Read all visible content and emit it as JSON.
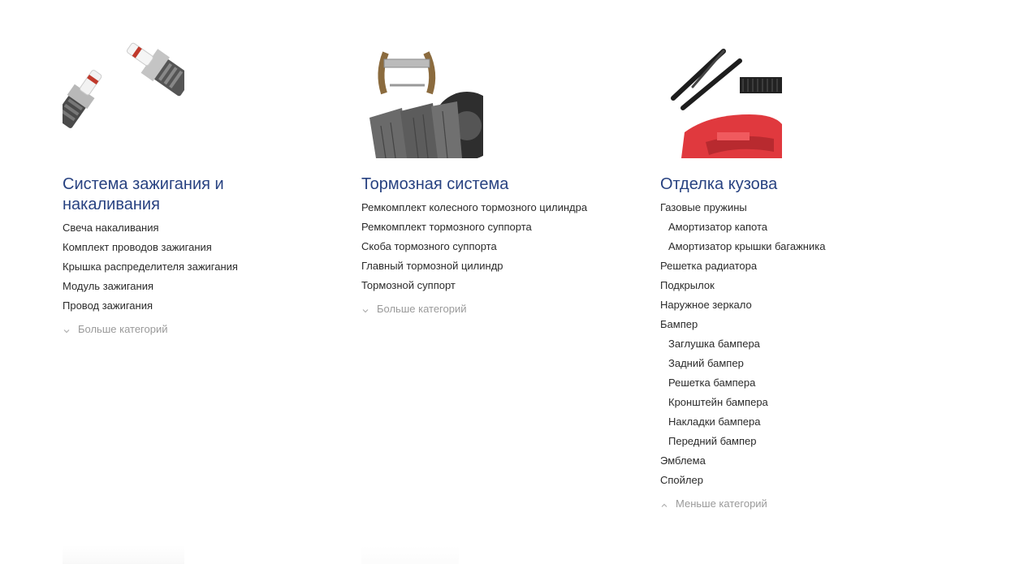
{
  "categories": [
    {
      "title": "Система зажигания и накаливания",
      "image_icon": "spark-plug-image",
      "items": [
        {
          "label": "Свеча накаливания",
          "level": 0
        },
        {
          "label": "Комплект проводов зажигания",
          "level": 0
        },
        {
          "label": "Крышка распределителя зажигания",
          "level": 0
        },
        {
          "label": "Модуль зажигания",
          "level": 0
        },
        {
          "label": "Провод зажигания",
          "level": 0
        }
      ],
      "toggle_label": "Больше категорий",
      "toggle_icon": "chevron-down-icon"
    },
    {
      "title": "Тормозная система",
      "image_icon": "brake-parts-image",
      "items": [
        {
          "label": "Ремкомплект колесного тормозного цилиндра",
          "level": 0
        },
        {
          "label": "Ремкомплект тормозного суппорта",
          "level": 0
        },
        {
          "label": "Скоба тормозного суппорта",
          "level": 0
        },
        {
          "label": "Главный тормозной цилиндр",
          "level": 0
        },
        {
          "label": "Тормозной суппорт",
          "level": 0
        }
      ],
      "toggle_label": "Больше категорий",
      "toggle_icon": "chevron-down-icon"
    },
    {
      "title": "Отделка кузова",
      "image_icon": "body-parts-image",
      "items": [
        {
          "label": "Газовые пружины",
          "level": 0
        },
        {
          "label": "Амортизатор капота",
          "level": 1
        },
        {
          "label": "Амортизатор крышки багажника",
          "level": 1
        },
        {
          "label": "Решетка радиатора",
          "level": 0
        },
        {
          "label": "Подкрылок",
          "level": 0
        },
        {
          "label": "Наружное зеркало",
          "level": 0
        },
        {
          "label": "Бампер",
          "level": 0
        },
        {
          "label": "Заглушка бампера",
          "level": 1
        },
        {
          "label": "Задний бампер",
          "level": 1
        },
        {
          "label": "Решетка бампера",
          "level": 1
        },
        {
          "label": "Кронштейн бампера",
          "level": 1
        },
        {
          "label": "Накладки бампера",
          "level": 1
        },
        {
          "label": "Передний бампер",
          "level": 1
        },
        {
          "label": "Эмблема",
          "level": 0
        },
        {
          "label": "Спойлер",
          "level": 0
        }
      ],
      "toggle_label": "Меньше категорий",
      "toggle_icon": "chevron-up-icon"
    }
  ],
  "colors": {
    "title": "#284281",
    "item_text": "#2b2b2b",
    "toggle_text": "#9a9a9a"
  }
}
